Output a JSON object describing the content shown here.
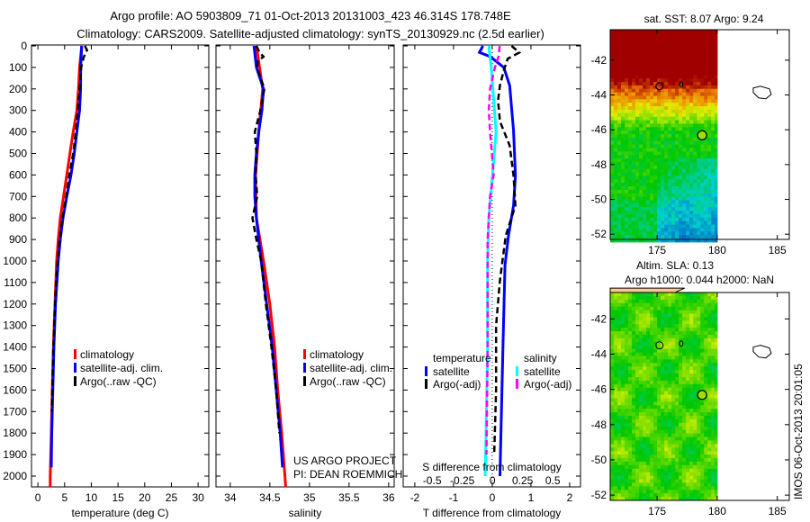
{
  "title_line1": "Argo profile: AO 5903809_71 01-Oct-2013 20131003_423 46.314S 178.748E",
  "title_line2": "Climatology: CARS2009. Satellite-adjusted climatology: synTS_20130929.nc (2.5d earlier)",
  "credit_line1": "US ARGO PROJECT",
  "credit_line2": "PI: DEAN ROEMMICH",
  "side_stamp": "IMOS 06-Oct-2013 20:01:05",
  "colors": {
    "climatology": "#ff0000",
    "satellite": "#0000ff",
    "argo": "#000000",
    "sal_sat": "#00ffff",
    "sal_argo": "#ff00ff"
  },
  "chart_data": [
    {
      "type": "line",
      "xlabel": "temperature (deg C)",
      "ylabel": "",
      "xlim": [
        -1.2,
        32
      ],
      "ylim": [
        2050,
        0
      ],
      "xticks": [
        "0",
        "5",
        "10",
        "15",
        "20",
        "25",
        "30"
      ],
      "xtick_values": [
        0,
        5,
        10,
        15,
        20,
        25,
        30
      ],
      "yticks": [
        "0",
        "100",
        "200",
        "300",
        "400",
        "500",
        "600",
        "700",
        "800",
        "900",
        "1000",
        "1100",
        "1200",
        "1300",
        "1400",
        "1500",
        "1600",
        "1700",
        "1800",
        "1900",
        "2000"
      ],
      "legend": [
        "climatology",
        "satellite-adj. clim.",
        "Argo(..raw -QC)"
      ],
      "series": [
        {
          "name": "climatology",
          "color": "#ff0000",
          "depth": [
            0,
            100,
            200,
            300,
            400,
            500,
            600,
            700,
            800,
            900,
            1000,
            1200,
            1400,
            1600,
            1800,
            2000,
            2050
          ],
          "values": [
            8.2,
            7.8,
            7.6,
            7.3,
            6.6,
            6.0,
            5.4,
            4.8,
            4.2,
            3.8,
            3.5,
            3.2,
            2.9,
            2.7,
            2.5,
            2.3,
            2.3
          ]
        },
        {
          "name": "satellite-adj. clim.",
          "color": "#0000ff",
          "depth": [
            0,
            100,
            200,
            300,
            400,
            500,
            600,
            700,
            800,
            900,
            1000,
            1200,
            1400,
            1600,
            1800,
            1960
          ],
          "values": [
            8.2,
            8.0,
            8.0,
            7.8,
            7.3,
            6.8,
            6.2,
            5.4,
            4.7,
            4.2,
            3.8,
            3.3,
            3.0,
            2.8,
            2.6,
            2.5
          ]
        },
        {
          "name": "Argo(..raw -QC)",
          "color": "#000000",
          "dashed": true,
          "depth": [
            0,
            20,
            50,
            100,
            200,
            300,
            400,
            500,
            600,
            700,
            800,
            900,
            1000,
            1100,
            1200,
            1400,
            1700
          ],
          "values": [
            8.8,
            9.2,
            8.6,
            8.1,
            7.8,
            7.5,
            7.1,
            6.6,
            5.9,
            5.3,
            4.6,
            4.1,
            3.7,
            3.4,
            3.2,
            2.9,
            2.6
          ]
        }
      ]
    },
    {
      "type": "line",
      "xlabel": "salinity",
      "xlim": [
        33.82,
        36.07
      ],
      "ylim": [
        2050,
        0
      ],
      "xticks": [
        "34",
        "34.5",
        "35",
        "35.5",
        "36"
      ],
      "xtick_values": [
        34,
        34.5,
        35,
        35.5,
        36
      ],
      "legend": [
        "climatology",
        "satellite-adj. clim.",
        "Argo(..raw -QC)"
      ],
      "series": [
        {
          "name": "climatology",
          "color": "#ff0000",
          "depth": [
            0,
            200,
            400,
            600,
            800,
            1000,
            1200,
            1400,
            1600,
            1800,
            2000,
            2050
          ],
          "values": [
            34.33,
            34.41,
            34.36,
            34.32,
            34.33,
            34.42,
            34.5,
            34.56,
            34.6,
            34.65,
            34.69,
            34.7
          ]
        },
        {
          "name": "satellite-adj. clim.",
          "color": "#0000ff",
          "depth": [
            0,
            100,
            200,
            300,
            400,
            500,
            600,
            700,
            800,
            900,
            1000,
            1200,
            1400,
            1600,
            1800,
            1960
          ],
          "values": [
            34.3,
            34.33,
            34.42,
            34.4,
            34.36,
            34.33,
            34.31,
            34.31,
            34.33,
            34.36,
            34.39,
            34.46,
            34.53,
            34.58,
            34.63,
            34.66
          ]
        },
        {
          "name": "Argo(..raw -QC)",
          "color": "#000000",
          "dashed": true,
          "depth": [
            0,
            30,
            50,
            70,
            100,
            200,
            300,
            400,
            500,
            600,
            700,
            800,
            900,
            1000,
            1200,
            1400,
            1600,
            1800
          ],
          "values": [
            34.33,
            34.37,
            34.42,
            34.35,
            34.34,
            34.43,
            34.38,
            34.31,
            34.33,
            34.32,
            34.34,
            34.28,
            34.33,
            34.39,
            34.45,
            34.52,
            34.58,
            34.62
          ]
        }
      ]
    },
    {
      "type": "line",
      "xlabel": "T difference from climatology",
      "x2label": "S difference from climatology",
      "xlim": [
        -2.3,
        2.28
      ],
      "x2lim": [
        -0.74,
        0.73
      ],
      "ylim": [
        2050,
        0
      ],
      "xticks": [
        "-2",
        "-1",
        "0",
        "1",
        "2"
      ],
      "xtick_values": [
        -2,
        -1,
        0,
        1,
        2
      ],
      "x2ticks": [
        "-0.5",
        "-0.25",
        "0",
        "0.25",
        "0.5"
      ],
      "x2tick_values": [
        -0.5,
        -0.25,
        0,
        0.25,
        0.5
      ],
      "legend_temperature_title": "temperature",
      "legend_salinity_title": "salinity",
      "legend": [
        "satellite",
        "Argo(-adj)",
        "satellite",
        "Argo(-adj)"
      ],
      "series": [
        {
          "name": "temperature satellite",
          "axis": "T",
          "color": "#0000ff",
          "depth": [
            0,
            30,
            50,
            100,
            184,
            394,
            603,
            742,
            881,
            1020,
            1370,
            2000
          ],
          "values": [
            -0.24,
            -0.33,
            -0.05,
            0.3,
            0.45,
            0.55,
            0.6,
            0.55,
            0.42,
            0.33,
            0.28,
            0.2
          ]
        },
        {
          "name": "temperature Argo(-adj)",
          "axis": "T",
          "color": "#000000",
          "dashed": true,
          "depth": [
            0,
            31,
            60,
            114,
            184,
            254,
            351,
            463,
            603,
            742,
            881,
            1090,
            1300,
            1600,
            1900
          ],
          "values": [
            0.5,
            0.7,
            0.4,
            0.3,
            0.2,
            0.15,
            0.2,
            0.45,
            0.55,
            0.6,
            0.35,
            0.2,
            0.1,
            0.1,
            0.05
          ]
        },
        {
          "name": "salinity satellite",
          "axis": "S",
          "color": "#00ffff",
          "depth": [
            0,
            100,
            400,
            600,
            800,
            1000,
            1400,
            2000
          ],
          "values": [
            -0.03,
            -0.01,
            0.03,
            0.0,
            -0.03,
            -0.04,
            -0.04,
            -0.06
          ]
        },
        {
          "name": "salinity Argo(-adj)",
          "axis": "S",
          "color": "#ff00ff",
          "dashed": true,
          "depth": [
            0,
            50,
            100,
            200,
            300,
            400,
            600,
            700,
            900,
            1400,
            1900
          ],
          "values": [
            0.06,
            0.05,
            0.02,
            -0.02,
            -0.03,
            -0.02,
            0.01,
            -0.02,
            -0.04,
            -0.04,
            -0.05
          ]
        }
      ]
    },
    {
      "type": "heatmap",
      "title": "sat. SST: 8.07 Argo: 9.24",
      "xticks": [
        "175",
        "180",
        "185"
      ],
      "xtick_values": [
        175,
        180,
        185
      ],
      "yticks": [
        "-42",
        "-44",
        "-46",
        "-48",
        "-50",
        "-52"
      ],
      "ytick_values": [
        -42,
        -44,
        -46,
        -48,
        -50,
        -52
      ],
      "xlim": [
        171.1,
        186.0
      ],
      "ylim": [
        -52.3,
        -40.25
      ],
      "argo_position": {
        "lon": 178.748,
        "lat": -46.314
      }
    },
    {
      "type": "heatmap",
      "title": "Altim. SLA: 0.13",
      "subtitle": "Argo h1000: 0.044 h2000: NaN",
      "xticks": [
        "175",
        "180",
        "185"
      ],
      "xtick_values": [
        175,
        180,
        185
      ],
      "yticks": [
        "-42",
        "-44",
        "-46",
        "-48",
        "-50",
        "-52"
      ],
      "ytick_values": [
        -42,
        -44,
        -46,
        -48,
        -50,
        -52
      ],
      "xlim": [
        171.1,
        186.0
      ],
      "ylim": [
        -52.3,
        -40.5
      ],
      "argo_position": {
        "lon": 178.748,
        "lat": -46.314
      }
    }
  ]
}
